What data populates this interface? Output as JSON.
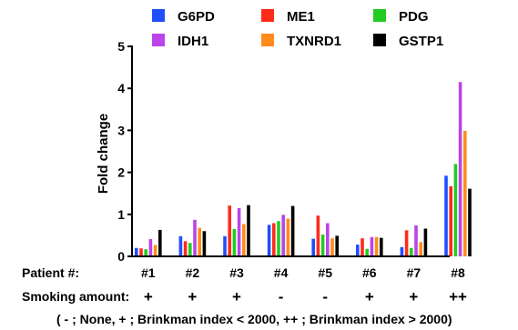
{
  "chart_data": {
    "type": "bar",
    "ylabel": "Fold change",
    "ylim": [
      0,
      5
    ],
    "yticks": [
      "0",
      "1",
      "2",
      "3",
      "4",
      "5"
    ],
    "categories": [
      "#1",
      "#2",
      "#3",
      "#4",
      "#5",
      "#6",
      "#7",
      "#8"
    ],
    "row_labels": {
      "patient": "Patient #:",
      "smoking": "Smoking amount:"
    },
    "smoking": [
      "+",
      "+",
      "+",
      "-",
      "-",
      "+",
      "+",
      "++"
    ],
    "footnote": "( - ; None, + ; Brinkman index < 2000, ++ ; Brinkman index > 2000)",
    "legend_position": "top",
    "series": [
      {
        "name": "G6PD",
        "color": "#1f4fff",
        "values": [
          0.2,
          0.48,
          0.48,
          0.75,
          0.42,
          0.28,
          0.22,
          1.92
        ]
      },
      {
        "name": "ME1",
        "color": "#ff2a1a",
        "values": [
          0.19,
          0.36,
          1.21,
          0.79,
          0.97,
          0.43,
          0.62,
          1.67
        ]
      },
      {
        "name": "PDG",
        "color": "#22cc22",
        "values": [
          0.17,
          0.32,
          0.65,
          0.84,
          0.52,
          0.18,
          0.2,
          2.2
        ]
      },
      {
        "name": "IDH1",
        "color": "#bb44e8",
        "values": [
          0.41,
          0.87,
          1.15,
          0.99,
          0.79,
          0.46,
          0.74,
          4.15
        ]
      },
      {
        "name": "TXNRD1",
        "color": "#ff8c1a",
        "values": [
          0.27,
          0.68,
          0.77,
          0.9,
          0.43,
          0.46,
          0.34,
          2.99
        ]
      },
      {
        "name": "GSTP1",
        "color": "#000000",
        "values": [
          0.63,
          0.6,
          1.22,
          1.2,
          0.49,
          0.44,
          0.66,
          1.61
        ]
      }
    ]
  }
}
